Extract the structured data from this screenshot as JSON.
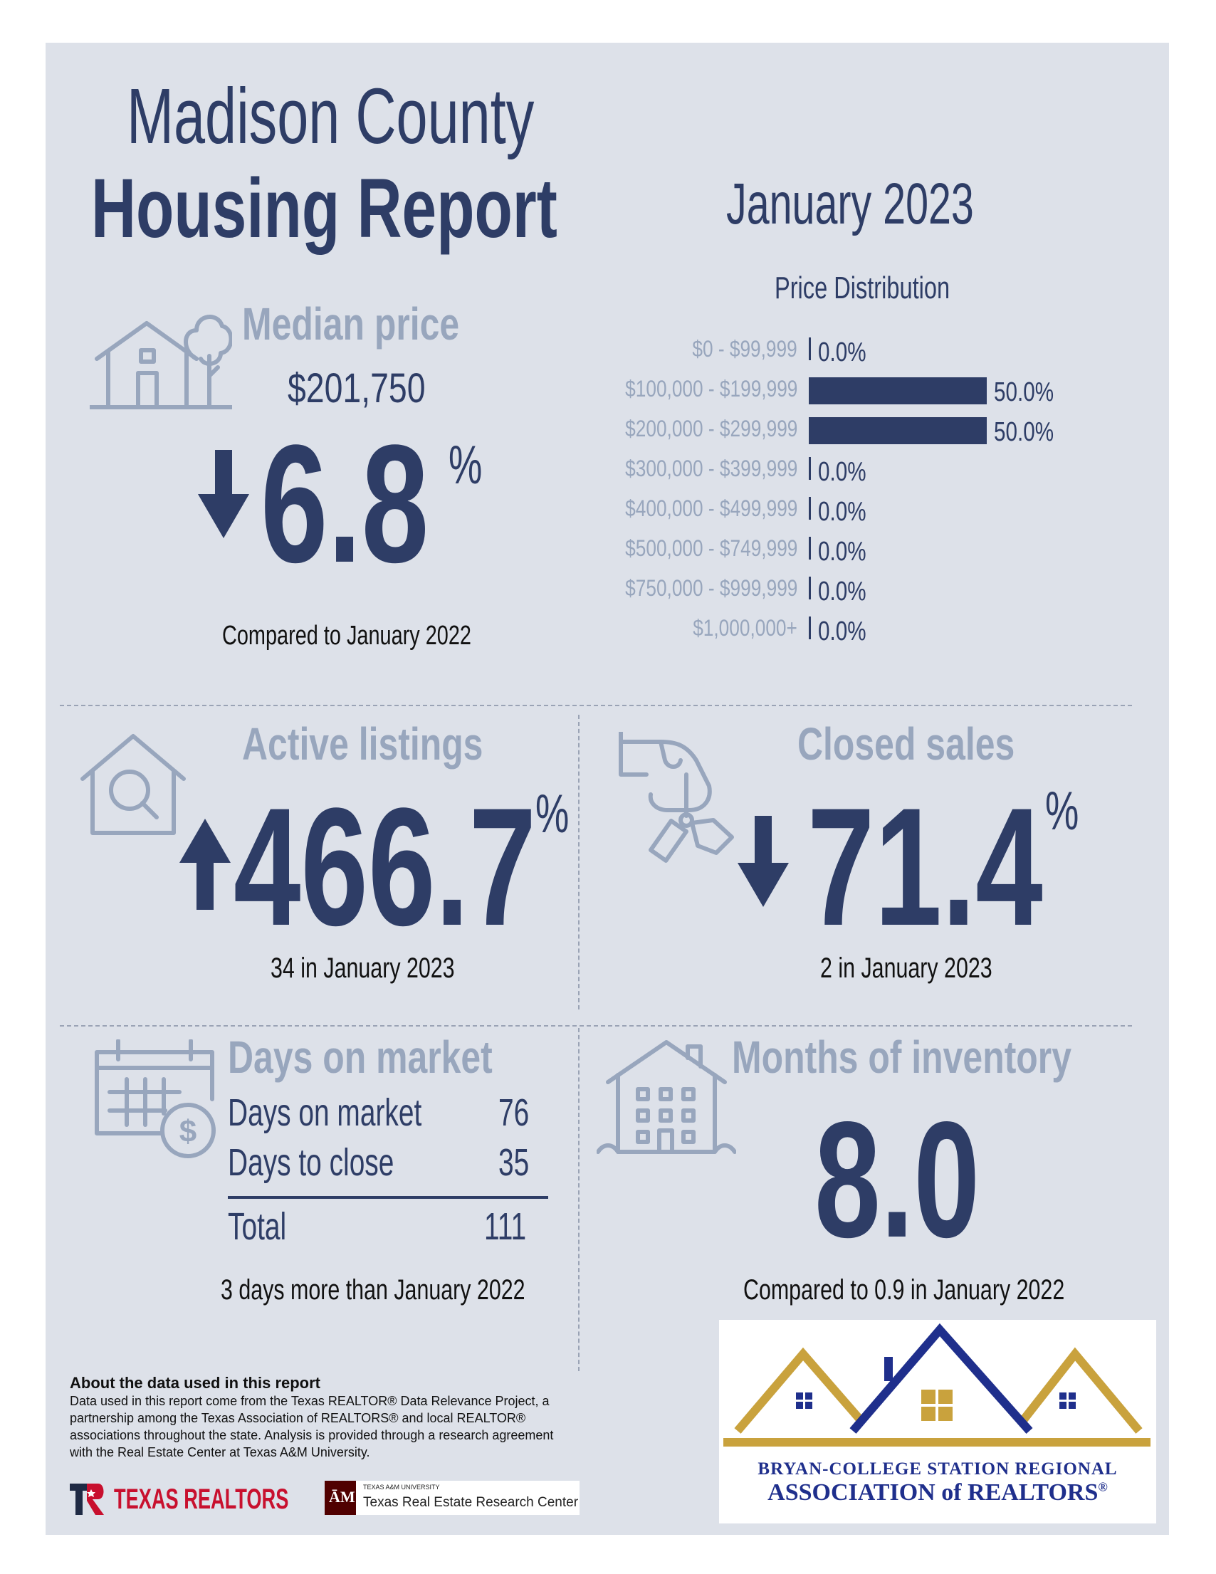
{
  "header": {
    "title_line1": "Madison County",
    "title_line2": "Housing Report",
    "month": "January 2023"
  },
  "median_price": {
    "heading": "Median price",
    "value": "$201,750",
    "direction": "down",
    "change": "6.8",
    "pct": "%",
    "comparison": "Compared to January 2022"
  },
  "price_distribution": {
    "title": "Price Distribution",
    "rows": [
      {
        "label": "$0 - $99,999",
        "value": "0.0%"
      },
      {
        "label": "$100,000 - $199,999",
        "value": "50.0%"
      },
      {
        "label": "$200,000 - $299,999",
        "value": "50.0%"
      },
      {
        "label": "$300,000 - $399,999",
        "value": "0.0%"
      },
      {
        "label": "$400,000 - $499,999",
        "value": "0.0%"
      },
      {
        "label": "$500,000 - $749,999",
        "value": "0.0%"
      },
      {
        "label": "$750,000 - $999,999",
        "value": "0.0%"
      },
      {
        "label": "$1,000,000+",
        "value": "0.0%"
      }
    ]
  },
  "chart_data": {
    "type": "bar",
    "title": "Price Distribution",
    "categories": [
      "$0 - $99,999",
      "$100,000 - $199,999",
      "$200,000 - $299,999",
      "$300,000 - $399,999",
      "$400,000 - $499,999",
      "$500,000 - $749,999",
      "$750,000 - $999,999",
      "$1,000,000+"
    ],
    "values": [
      0.0,
      50.0,
      50.0,
      0.0,
      0.0,
      0.0,
      0.0,
      0.0
    ],
    "orientation": "horizontal",
    "xlim": [
      0,
      50
    ],
    "grid": false,
    "color": "#2e3d66"
  },
  "active_listings": {
    "heading": "Active listings",
    "direction": "up",
    "change": "466.7",
    "pct": "%",
    "detail": "34 in January 2023"
  },
  "closed_sales": {
    "heading": "Closed sales",
    "direction": "down",
    "change": "71.4",
    "pct": "%",
    "detail": "2 in January 2023"
  },
  "days_on_market": {
    "heading": "Days on market",
    "rows": [
      {
        "label": "Days on market",
        "value": "76"
      },
      {
        "label": "Days to close",
        "value": "35"
      }
    ],
    "total_label": "Total",
    "total_value": "111",
    "comparison": "3 days more than January 2022"
  },
  "months_inventory": {
    "heading": "Months of inventory",
    "value": "8.0",
    "comparison": "Compared to 0.9 in January 2022"
  },
  "about": {
    "heading": "About the data used in this report",
    "body": "Data used in this report come from the Texas REALTOR® Data Relevance Project, a partnership among the Texas Association of REALTORS® and local REALTOR® associations throughout the state. Analysis is provided through a research agreement with the Real Estate Center at Texas A&M University."
  },
  "logos": {
    "texas_realtors": "TEXAS REALTORS",
    "tamu_small": "TEXAS A&M UNIVERSITY",
    "tamu_center": "Texas Real Estate Research Center",
    "bcs_line1": "BRYAN-COLLEGE STATION REGIONAL",
    "bcs_line2": "ASSOCIATION of REALTORS",
    "bcs_reg": "®"
  },
  "colors": {
    "navy": "#2e3d66",
    "slate_gray": "#98a6bd",
    "panel_bg": "#dde1e9",
    "gold": "#c9a23d",
    "tamu_maroon": "#500000",
    "texas_red": "#c8102e"
  }
}
